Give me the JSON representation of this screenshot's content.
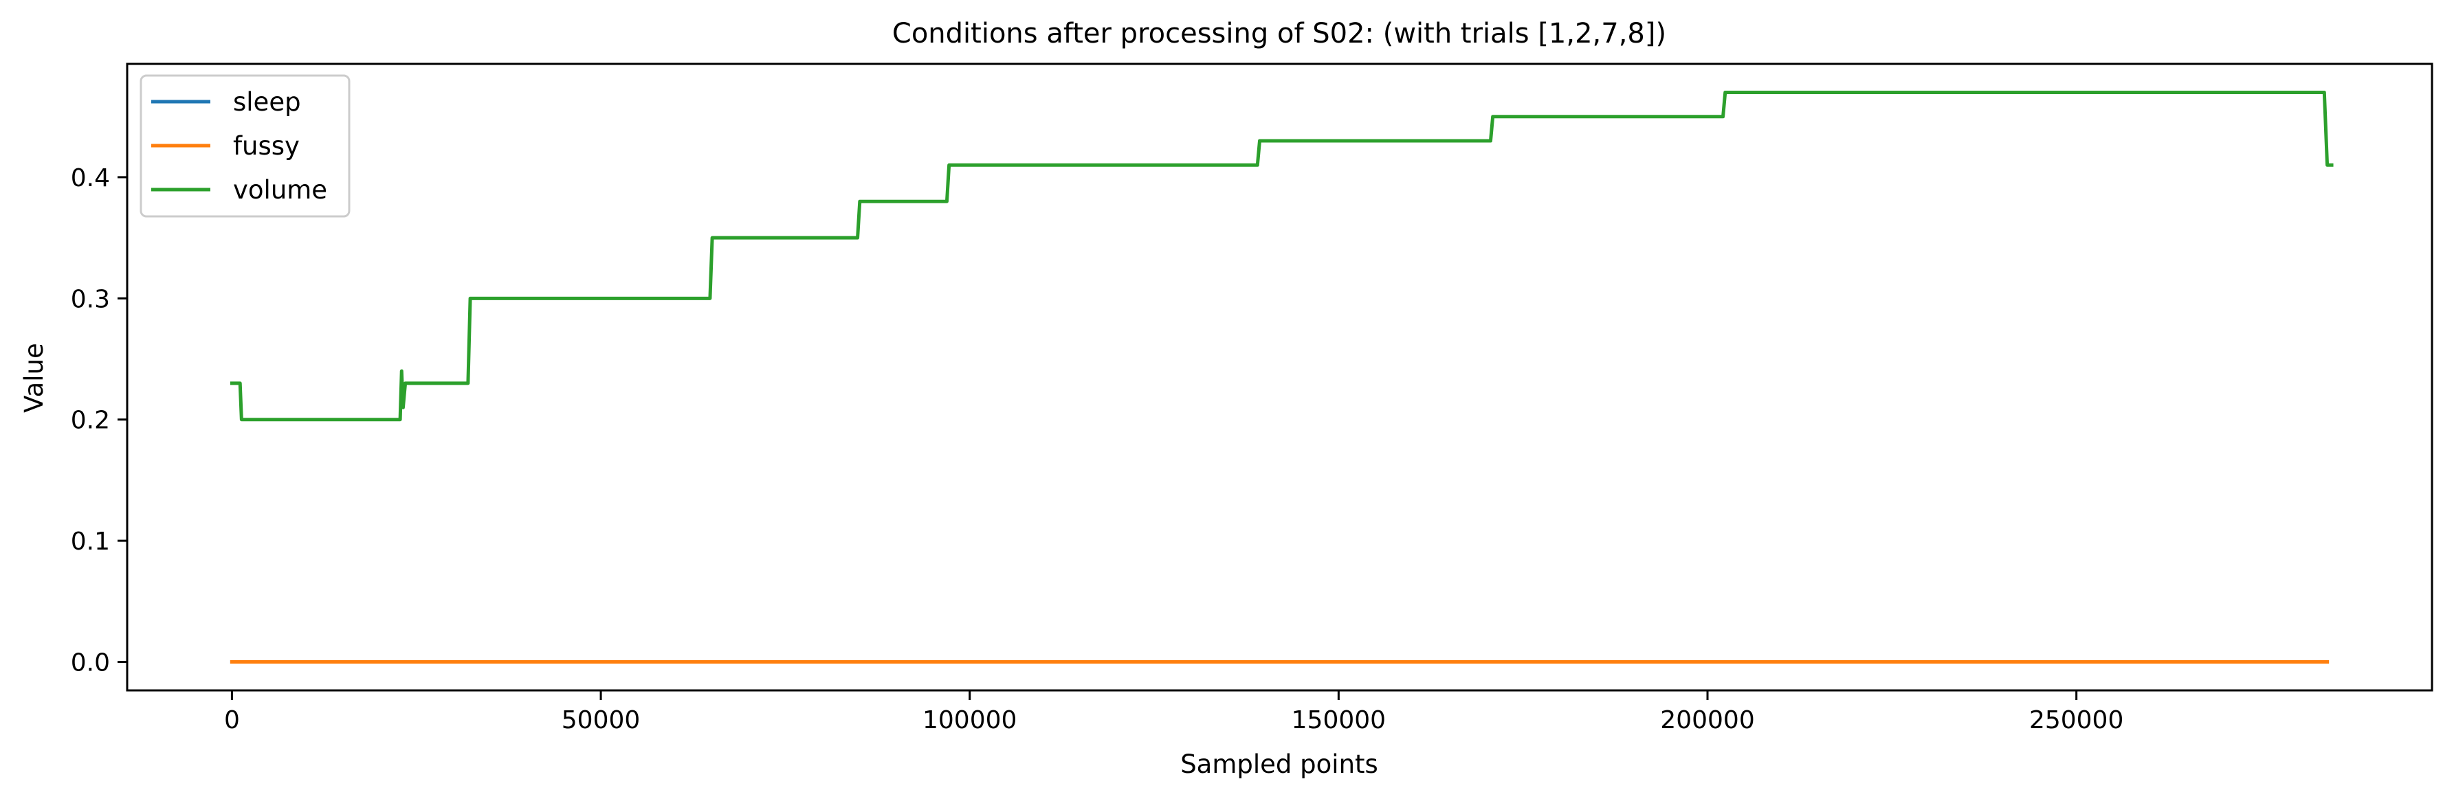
{
  "chart_data": {
    "type": "line",
    "title": "Conditions after processing of S02: (with trials [1,2,7,8])",
    "xlabel": "Sampled points",
    "ylabel": "Value",
    "xlim": [
      -14200,
      298200
    ],
    "ylim": [
      -0.0235,
      0.4935
    ],
    "xticks": [
      {
        "value": 0,
        "label": "0"
      },
      {
        "value": 50000,
        "label": "50000"
      },
      {
        "value": 100000,
        "label": "100000"
      },
      {
        "value": 150000,
        "label": "150000"
      },
      {
        "value": 200000,
        "label": "200000"
      },
      {
        "value": 250000,
        "label": "250000"
      }
    ],
    "yticks": [
      {
        "value": 0.0,
        "label": "0.0"
      },
      {
        "value": 0.1,
        "label": "0.1"
      },
      {
        "value": 0.2,
        "label": "0.2"
      },
      {
        "value": 0.3,
        "label": "0.3"
      },
      {
        "value": 0.4,
        "label": "0.4"
      }
    ],
    "grid": false,
    "legend_position": "top-left",
    "series": [
      {
        "name": "sleep",
        "color": "#1f77b4",
        "points": [
          [
            0,
            0
          ],
          [
            284000,
            0
          ]
        ]
      },
      {
        "name": "fussy",
        "color": "#ff7f0e",
        "points": [
          [
            0,
            0
          ],
          [
            284000,
            0
          ]
        ]
      },
      {
        "name": "volume",
        "color": "#2ca02c",
        "points": [
          [
            0,
            0.23
          ],
          [
            1100,
            0.23
          ],
          [
            1300,
            0.2
          ],
          [
            22800,
            0.2
          ],
          [
            23000,
            0.24
          ],
          [
            23200,
            0.21
          ],
          [
            23500,
            0.23
          ],
          [
            32000,
            0.23
          ],
          [
            32300,
            0.3
          ],
          [
            64800,
            0.3
          ],
          [
            65100,
            0.35
          ],
          [
            84800,
            0.35
          ],
          [
            85100,
            0.38
          ],
          [
            96900,
            0.38
          ],
          [
            97200,
            0.41
          ],
          [
            139000,
            0.41
          ],
          [
            139300,
            0.43
          ],
          [
            170600,
            0.43
          ],
          [
            170900,
            0.45
          ],
          [
            202100,
            0.45
          ],
          [
            202400,
            0.47
          ],
          [
            283600,
            0.47
          ],
          [
            284000,
            0.41
          ],
          [
            284600,
            0.41
          ]
        ]
      }
    ]
  }
}
